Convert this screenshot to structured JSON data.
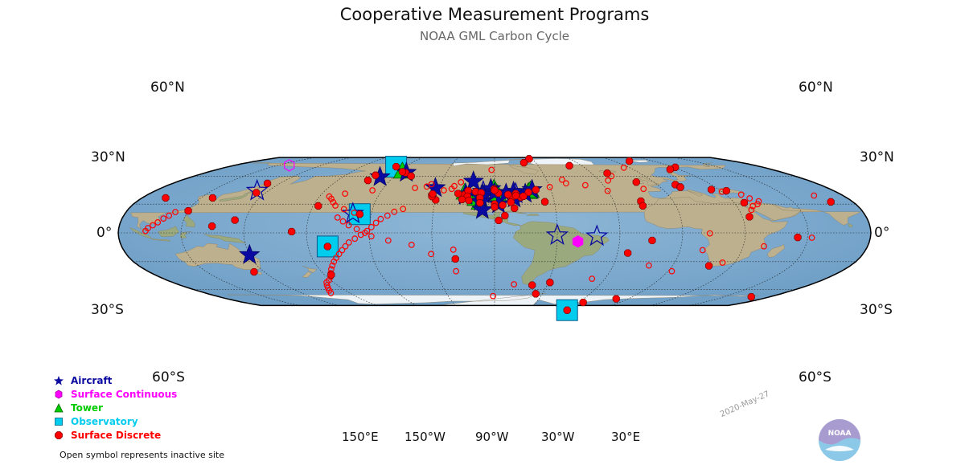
{
  "title": "Cooperative Measurement Programs",
  "subtitle": "NOAA GML Carbon Cycle",
  "date_stamp": "2020-May-27",
  "lat_labels": [
    "60°N",
    "30°N",
    "0°",
    "30°S",
    "60°S"
  ],
  "lon_labels": [
    "150°E",
    "150°W",
    "90°W",
    "30°W",
    "30°E"
  ],
  "legend": [
    {
      "label": "Aircraft",
      "symbol": "star",
      "color": "#0a0aa0"
    },
    {
      "label": "Surface Continuous",
      "symbol": "hexagon",
      "color": "#ff00ff"
    },
    {
      "label": "Tower",
      "symbol": "triangle",
      "color": "#00cc00"
    },
    {
      "label": "Observatory",
      "symbol": "square",
      "color": "#00ccee"
    },
    {
      "label": "Surface Discrete",
      "symbol": "circle",
      "color": "#ff0000"
    }
  ],
  "footnote": "Open symbol represents inactive site",
  "logo_text": "NOAA",
  "map": {
    "projection": "robinson",
    "central_longitude": -90,
    "sites": {
      "observatory": [
        [
          71.3,
          -156.6
        ],
        [
          19.5,
          -155.6
        ],
        [
          -14.2,
          -170.6
        ],
        [
          -89.98,
          -24.8
        ]
      ],
      "tower": [
        [
          65,
          -148
        ],
        [
          45.9,
          -90.3
        ],
        [
          40.1,
          -88.4
        ],
        [
          42.5,
          -72.2
        ],
        [
          31.3,
          -97.3
        ],
        [
          35.4,
          -99.5
        ],
        [
          41.9,
          -105.5
        ],
        [
          44,
          -71
        ]
      ],
      "surface_continuous": [
        [
          73,
          128
        ],
        [
          -9,
          -50
        ]
      ],
      "aircraft_active": [
        [
          64,
          -145
        ],
        [
          59,
          -158
        ],
        [
          47,
          -122
        ],
        [
          54,
          -102
        ],
        [
          46,
          -92
        ],
        [
          42,
          -90
        ],
        [
          40,
          -96
        ],
        [
          37,
          -97
        ],
        [
          39,
          -105
        ],
        [
          32.5,
          -97
        ],
        [
          41,
          -74
        ],
        [
          43,
          -80
        ],
        [
          36,
          -80
        ],
        [
          41,
          -84
        ],
        [
          30,
          -88
        ],
        [
          24,
          -96
        ],
        [
          45,
          -70
        ],
        [
          -23,
          150
        ]
      ],
      "aircraft_inactive": [
        [
          44,
          144
        ],
        [
          20,
          -159
        ],
        [
          -2.5,
          -60
        ],
        [
          -3.5,
          -41
        ],
        [
          40,
          -105
        ],
        [
          43,
          -96
        ],
        [
          41,
          -79
        ]
      ],
      "surface_discrete_active": [
        [
          82.5,
          -62.5
        ],
        [
          82.4,
          -62.3
        ],
        [
          78.9,
          11.9
        ],
        [
          76.5,
          -68.7
        ],
        [
          72.6,
          -38.5
        ],
        [
          71.3,
          -156.6
        ],
        [
          70.5,
          31
        ],
        [
          67.9,
          24.1
        ],
        [
          63.3,
          -20.3
        ],
        [
          61,
          -162
        ],
        [
          53.3,
          -9.9
        ],
        [
          51.9,
          143
        ],
        [
          50.5,
          10
        ],
        [
          48,
          11
        ],
        [
          47.8,
          11
        ],
        [
          45.3,
          25.9
        ],
        [
          44,
          33
        ],
        [
          42,
          145
        ],
        [
          36.5,
          102
        ],
        [
          33.1,
          -16.3
        ],
        [
          32.4,
          79
        ],
        [
          31.5,
          35
        ],
        [
          36.5,
          126
        ],
        [
          32.5,
          -64.7
        ],
        [
          28.3,
          -16.5
        ],
        [
          25.7,
          -80.2
        ],
        [
          23,
          120
        ],
        [
          19.5,
          -155.6
        ],
        [
          28.2,
          -177.4
        ],
        [
          13.4,
          144.8
        ],
        [
          16.8,
          33.5
        ],
        [
          7,
          134.5
        ],
        [
          1.3,
          172.9
        ],
        [
          -4.7,
          55.2
        ],
        [
          -7.9,
          -14.4
        ],
        [
          -14.2,
          -170.6
        ],
        [
          -21,
          -25
        ],
        [
          -27.2,
          -109.4
        ],
        [
          -34.4,
          18.5
        ],
        [
          -40.7,
          144.7
        ],
        [
          -43.8,
          -176.6
        ],
        [
          -54.9,
          -68.5
        ],
        [
          -52,
          -59
        ],
        [
          -64.8,
          -64.1
        ],
        [
          -68.5,
          78
        ],
        [
          -71,
          -8
        ],
        [
          -75.6,
          -26.5
        ],
        [
          -89.98,
          -24.8
        ],
        [
          40,
          -105.6
        ],
        [
          39.9,
          -105.5
        ],
        [
          41,
          -109
        ],
        [
          44,
          -104
        ],
        [
          43,
          -100
        ],
        [
          41.8,
          -97
        ],
        [
          38.2,
          -104
        ],
        [
          34.9,
          -106.5
        ],
        [
          36.6,
          -97.5
        ],
        [
          31.3,
          -97.3
        ],
        [
          33.9,
          -103
        ],
        [
          45.9,
          -90.3
        ],
        [
          42.5,
          -72.2
        ],
        [
          41.5,
          -88
        ],
        [
          44.5,
          -90
        ],
        [
          37.2,
          -76.5
        ],
        [
          36.7,
          -81.3
        ],
        [
          34.4,
          -119.8
        ],
        [
          39.5,
          -122.5
        ],
        [
          38,
          -122.2
        ],
        [
          40.6,
          -122.2
        ],
        [
          32,
          -81.8
        ],
        [
          41,
          -79
        ],
        [
          40,
          -83
        ],
        [
          45,
          -68
        ],
        [
          38.3,
          -75.1
        ],
        [
          39,
          -79
        ],
        [
          29,
          -86
        ],
        [
          30,
          -90
        ],
        [
          27,
          -90
        ],
        [
          18,
          -85
        ],
        [
          13,
          -88
        ],
        [
          55.2,
          -162.7
        ],
        [
          64,
          -145.5
        ],
        [
          65,
          -148
        ],
        [
          60,
          -140
        ]
      ],
      "surface_discrete_inactive": [
        [
          67.4,
          -92
        ],
        [
          70,
          -4
        ],
        [
          56,
          -51
        ],
        [
          52,
          -50
        ],
        [
          48,
          -60
        ],
        [
          55,
          -25
        ],
        [
          60,
          -20
        ],
        [
          50,
          -40
        ],
        [
          44,
          -30
        ],
        [
          46,
          -10
        ],
        [
          43,
          30
        ],
        [
          39,
          75
        ],
        [
          40,
          38
        ],
        [
          36,
          40
        ],
        [
          33,
          43
        ],
        [
          30,
          41
        ],
        [
          28,
          38
        ],
        [
          24,
          36
        ],
        [
          21.8,
          114
        ],
        [
          18,
          112
        ],
        [
          15,
          110
        ],
        [
          11,
          108
        ],
        [
          8,
          106
        ],
        [
          5,
          104
        ],
        [
          2,
          103
        ],
        [
          -5,
          62
        ],
        [
          -0.5,
          13
        ],
        [
          -14,
          40
        ],
        [
          -18,
          11
        ],
        [
          -31,
          24
        ],
        [
          -40,
          2
        ],
        [
          -34,
          -12
        ],
        [
          -48,
          -37
        ],
        [
          -54,
          -79
        ],
        [
          -22,
          -121
        ],
        [
          -17.5,
          -110
        ],
        [
          -12.5,
          -130
        ],
        [
          -8,
          -141
        ],
        [
          -3.5,
          -149
        ],
        [
          0,
          -152
        ],
        [
          4,
          -156
        ],
        [
          8,
          -160
        ],
        [
          12,
          -163
        ],
        [
          16,
          -166
        ],
        [
          21,
          -158.5
        ],
        [
          24.7,
          -164
        ],
        [
          28.5,
          -169
        ],
        [
          32,
          -171
        ],
        [
          35.5,
          -173
        ],
        [
          38,
          -175
        ],
        [
          41,
          -168
        ],
        [
          44.5,
          -155
        ],
        [
          47,
          -133
        ],
        [
          48.5,
          -127
        ],
        [
          51,
          -125
        ],
        [
          53.2,
          -109
        ],
        [
          49,
          -112
        ],
        [
          46,
          -113
        ],
        [
          44.5,
          -117
        ],
        [
          25,
          -135
        ],
        [
          22,
          -139
        ],
        [
          18,
          -142
        ],
        [
          14.5,
          -145
        ],
        [
          10.5,
          -147
        ],
        [
          6,
          -149
        ],
        [
          2,
          -151
        ],
        [
          -2,
          -154
        ],
        [
          -6,
          -157
        ],
        [
          -10,
          -160
        ],
        [
          -14,
          -162
        ],
        [
          -18,
          -164
        ],
        [
          -22,
          -166
        ],
        [
          -26,
          -168
        ],
        [
          -30,
          -170
        ],
        [
          -34,
          -172
        ],
        [
          -38,
          -174
        ],
        [
          -42,
          -176
        ],
        [
          -46,
          -178
        ],
        [
          -49.5,
          179
        ],
        [
          -52,
          176
        ],
        [
          -55,
          174
        ],
        [
          -58,
          172
        ],
        [
          -61,
          170
        ],
        [
          -64,
          168
        ],
        [
          -40,
          -110
        ],
        [
          -67.5,
          -91
        ]
      ]
    }
  }
}
